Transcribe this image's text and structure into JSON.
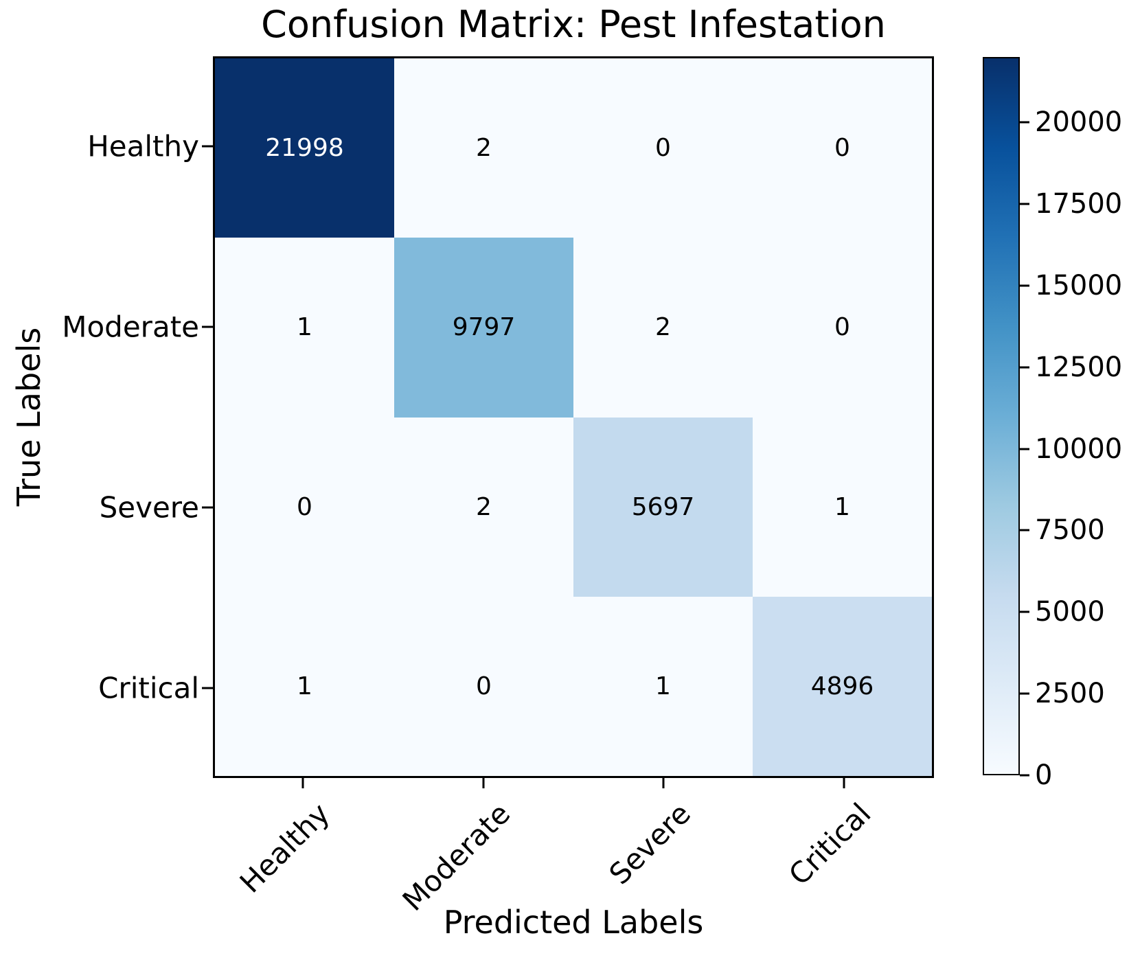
{
  "chart_data": {
    "type": "heatmap",
    "title": "Confusion Matrix: Pest Infestation",
    "xlabel": "Predicted Labels",
    "ylabel": "True Labels",
    "x_categories": [
      "Healthy",
      "Moderate",
      "Severe",
      "Critical"
    ],
    "y_categories": [
      "Healthy",
      "Moderate",
      "Severe",
      "Critical"
    ],
    "matrix": [
      [
        21998,
        2,
        0,
        0
      ],
      [
        1,
        9797,
        2,
        0
      ],
      [
        0,
        2,
        5697,
        1
      ],
      [
        1,
        0,
        1,
        4896
      ]
    ],
    "colormap": "Blues",
    "vmin": 0,
    "vmax": 21998,
    "colorbar_ticks": [
      0,
      2500,
      5000,
      7500,
      10000,
      12500,
      15000,
      17500,
      20000
    ],
    "legend_position": "right-colorbar",
    "grid": false,
    "colors": {
      "cell_colors": [
        [
          "#08306b",
          "#f7fbff",
          "#f7fbff",
          "#f7fbff"
        ],
        [
          "#f7fbff",
          "#81badb",
          "#f7fbff",
          "#f7fbff"
        ],
        [
          "#f7fbff",
          "#f7fbff",
          "#c3daee",
          "#f7fbff"
        ],
        [
          "#f7fbff",
          "#f7fbff",
          "#f7fbff",
          "#cbdef1"
        ]
      ],
      "cell_text_colors": [
        [
          "#ffffff",
          "#000000",
          "#000000",
          "#000000"
        ],
        [
          "#000000",
          "#000000",
          "#000000",
          "#000000"
        ],
        [
          "#000000",
          "#000000",
          "#000000",
          "#000000"
        ],
        [
          "#000000",
          "#000000",
          "#000000",
          "#000000"
        ]
      ],
      "gradient_stops": [
        "#f7fbff",
        "#deebf7",
        "#c6dbef",
        "#9ecae1",
        "#6baed6",
        "#4292c6",
        "#2171b5",
        "#08519c",
        "#08306b"
      ],
      "axis_color": "#000000",
      "background": "#ffffff"
    }
  }
}
